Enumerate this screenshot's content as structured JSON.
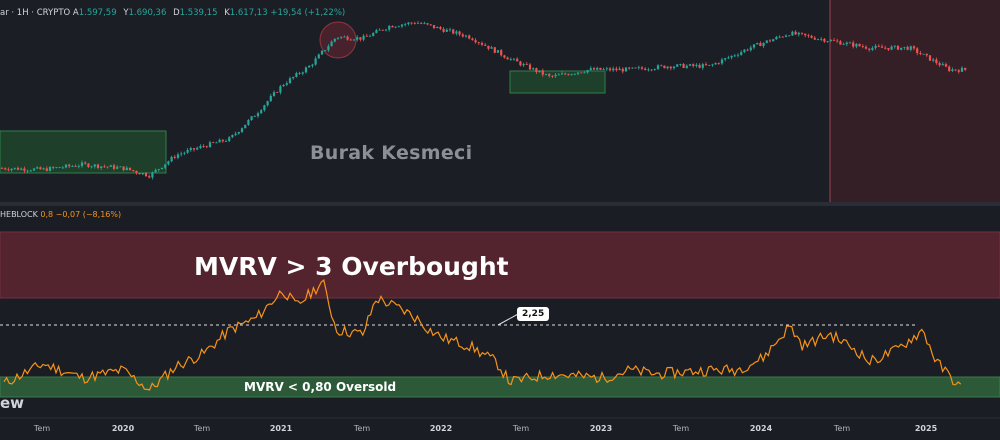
{
  "top_legend": {
    "symbol": "ar · 1H · CRYPTO",
    "o_label": "A",
    "o_value": "1.597,59",
    "h_label": "Y",
    "h_value": "1.690,36",
    "l_label": "D",
    "l_value": "1.539,15",
    "c_label": "K",
    "c_value": "1.617,13 +19,54 (+1,22%)"
  },
  "indicator_legend": {
    "name": "HEBLOCK",
    "value": "0,8 −0,07 (−8,16%)"
  },
  "watermark": "Burak Kesmeci",
  "overbought_label": "MVRV > 3 Overbought",
  "oversold_label": "MVRV < 0,80 Oversold",
  "price_tag": "2,25",
  "brand": "ew",
  "colors": {
    "background": "#1b1d24",
    "up_candle": "#26a69a",
    "down_candle": "#ef5350",
    "mvrv_line": "#f7931a",
    "overbought_band": "#6b2a34",
    "oversold_band": "#2e5b3a",
    "accumulation_box": "#2e6b3e"
  },
  "x_axis": {
    "ticks": [
      {
        "label": "Tem",
        "year": false
      },
      {
        "label": "2020",
        "year": true
      },
      {
        "label": "Tem",
        "year": false
      },
      {
        "label": "2021",
        "year": true
      },
      {
        "label": "Tem",
        "year": false
      },
      {
        "label": "2022",
        "year": true
      },
      {
        "label": "Tem",
        "year": false
      },
      {
        "label": "2023",
        "year": true
      },
      {
        "label": "Tem",
        "year": false
      },
      {
        "label": "2024",
        "year": true
      },
      {
        "label": "Tem",
        "year": false
      },
      {
        "label": "2025",
        "year": true
      }
    ]
  },
  "chart_data": [
    {
      "type": "candlestick",
      "title": "",
      "note": "approximate close path (relative scale, price axis not visible)",
      "x": [
        "2019-04",
        "2019-07",
        "2019-10",
        "2020-01",
        "2020-03",
        "2020-05",
        "2020-07",
        "2020-09",
        "2020-11",
        "2021-01",
        "2021-03",
        "2021-05",
        "2021-07",
        "2021-09",
        "2021-11",
        "2022-01",
        "2022-03",
        "2022-06",
        "2022-09",
        "2022-12",
        "2023-03",
        "2023-06",
        "2023-09",
        "2023-12",
        "2024-03",
        "2024-06",
        "2024-09",
        "2024-12",
        "2025-03"
      ],
      "values": [
        150,
        148,
        155,
        150,
        140,
        168,
        180,
        190,
        225,
        265,
        290,
        330,
        328,
        345,
        350,
        340,
        330,
        300,
        275,
        285,
        285,
        290,
        290,
        315,
        335,
        325,
        315,
        315,
        285
      ]
    },
    {
      "type": "line",
      "title": "",
      "ylabel": "",
      "x": [
        "2019-04",
        "2019-07",
        "2019-10",
        "2020-01",
        "2020-03",
        "2020-05",
        "2020-07",
        "2020-09",
        "2020-11",
        "2021-01",
        "2021-02",
        "2021-04",
        "2021-05",
        "2021-07",
        "2021-08",
        "2021-10",
        "2021-11",
        "2021-12",
        "2022-01",
        "2022-03",
        "2022-05",
        "2022-06",
        "2022-09",
        "2022-11",
        "2023-01",
        "2023-03",
        "2023-05",
        "2023-07",
        "2023-09",
        "2023-11",
        "2024-01",
        "2024-03",
        "2024-04",
        "2024-06",
        "2024-08",
        "2024-09",
        "2024-11",
        "2025-01",
        "2025-02",
        "2025-04"
      ],
      "values": [
        0.95,
        1.45,
        1.1,
        1.3,
        0.8,
        1.4,
        1.7,
        2.3,
        2.6,
        3.3,
        2.9,
        3.5,
        2.3,
        2.2,
        3.1,
        2.8,
        2.6,
        2.3,
        2.1,
        1.9,
        1.5,
        1.0,
        1.2,
        1.15,
        1.1,
        1.3,
        1.2,
        1.25,
        1.3,
        1.3,
        1.6,
        2.4,
        1.9,
        2.2,
        1.8,
        1.5,
        1.8,
        2.3,
        1.5,
        0.8
      ],
      "reference_line": 2.25,
      "overbought_threshold": 3.0,
      "oversold_threshold": 0.8,
      "ylim": [
        0.6,
        3.6
      ]
    }
  ]
}
